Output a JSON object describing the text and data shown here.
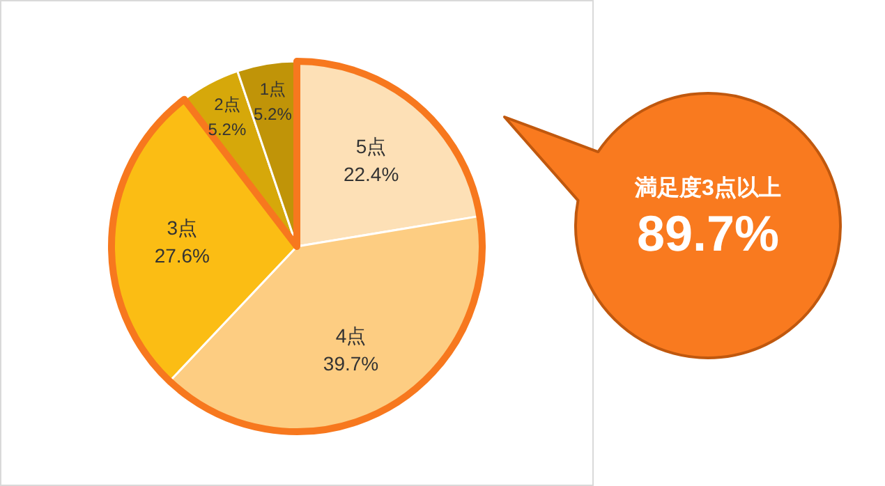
{
  "chart_data": {
    "type": "pie",
    "categories": [
      "5点",
      "4点",
      "3点",
      "2点",
      "1点"
    ],
    "values": [
      22.4,
      39.7,
      27.6,
      5.2,
      5.2
    ],
    "colors": [
      "#fde0b6",
      "#fdcd82",
      "#fbbd14",
      "#d6a80a",
      "#c09408"
    ],
    "value_labels": [
      "22.4%",
      "39.7%",
      "27.6%",
      "5.2%",
      "5.2%"
    ],
    "annotations": [
      "満足度3点以上",
      "89.7%"
    ]
  }
}
